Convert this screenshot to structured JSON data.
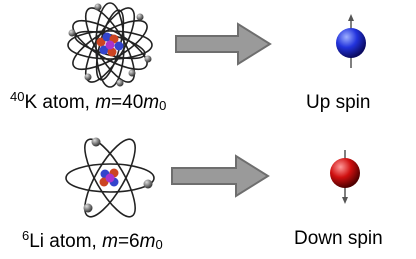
{
  "rows": [
    {
      "label": [
        "40",
        "K atom, ",
        "m",
        "=40",
        "m",
        "0"
      ],
      "spin": "Up spin"
    },
    {
      "label": [
        "6",
        "Li atom, ",
        "m",
        "=6",
        "m",
        "0"
      ],
      "spin": "Down spin"
    }
  ]
}
